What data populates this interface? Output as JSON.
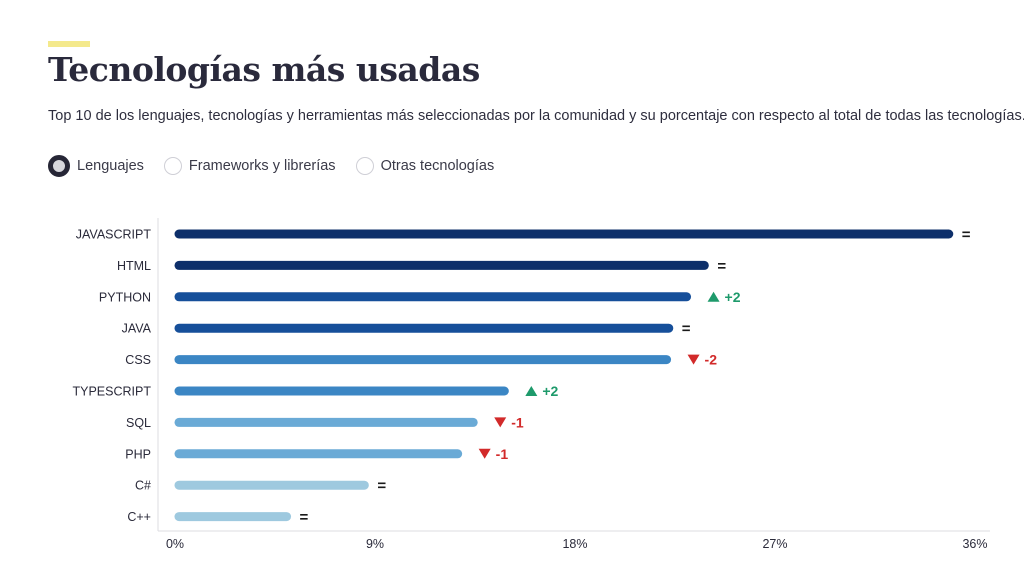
{
  "header": {
    "title": "Tecnologías más usadas",
    "subtitle": "Top 10 de los lenguajes, tecnologías y herramientas más seleccionadas por la comunidad y su porcentaje con respecto al total de todas las tecnologías.",
    "accent_color": "#f4e98c"
  },
  "filter": {
    "options": [
      {
        "label": "Lenguajes",
        "selected": true
      },
      {
        "label": "Frameworks y librerías",
        "selected": false
      },
      {
        "label": "Otras tecnologías",
        "selected": false
      }
    ]
  },
  "colors": {
    "up": "#1e9a6b",
    "down": "#d22a2a",
    "same": "#1a1a1a"
  },
  "chart_data": {
    "type": "bar",
    "orientation": "horizontal",
    "title": "",
    "xlabel": "",
    "ylabel": "",
    "xlim": [
      0,
      36
    ],
    "xticks": [
      "0%",
      "9%",
      "18%",
      "27%",
      "36%"
    ],
    "grid": false,
    "categories": [
      "JAVASCRIPT",
      "HTML",
      "PYTHON",
      "JAVA",
      "CSS",
      "TYPESCRIPT",
      "SQL",
      "PHP",
      "C#",
      "C++"
    ],
    "values": [
      35.0,
      24.0,
      23.2,
      22.4,
      22.3,
      15.0,
      13.6,
      12.9,
      8.7,
      5.2
    ],
    "changes": [
      {
        "dir": "same",
        "label": "="
      },
      {
        "dir": "same",
        "label": "="
      },
      {
        "dir": "up",
        "label": "+2"
      },
      {
        "dir": "same",
        "label": "="
      },
      {
        "dir": "down",
        "label": "-2"
      },
      {
        "dir": "up",
        "label": "+2"
      },
      {
        "dir": "down",
        "label": "-1"
      },
      {
        "dir": "down",
        "label": "-1"
      },
      {
        "dir": "same",
        "label": "="
      },
      {
        "dir": "same",
        "label": "="
      }
    ],
    "bar_colors": [
      "#0d2f6a",
      "#0d2f6a",
      "#164f9a",
      "#164f9a",
      "#3b86c4",
      "#3b86c4",
      "#6aaad6",
      "#6aaad6",
      "#9ec9df",
      "#9ec9df"
    ]
  }
}
